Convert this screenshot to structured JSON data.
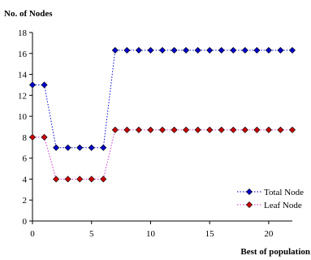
{
  "chart_data": {
    "type": "line",
    "ylabel": "No. of Nodes",
    "xlabel": "Best of population",
    "xlim": [
      0,
      22
    ],
    "ylim": [
      0,
      18
    ],
    "x_ticks": [
      0,
      5,
      10,
      15,
      20
    ],
    "y_ticks": [
      0,
      2,
      4,
      6,
      8,
      10,
      12,
      14,
      16,
      18
    ],
    "grid": false,
    "legend_position": "bottom-right",
    "x": [
      0,
      1,
      2,
      3,
      4,
      5,
      6,
      7,
      8,
      9,
      10,
      11,
      12,
      13,
      14,
      15,
      16,
      17,
      18,
      19,
      20,
      21,
      22
    ],
    "series": [
      {
        "name": "Total Node",
        "color": "#0000cc",
        "marker": "diamond",
        "line": "dotted",
        "values": [
          13,
          13,
          7,
          7,
          7,
          7,
          7,
          16.3,
          16.3,
          16.3,
          16.3,
          16.3,
          16.3,
          16.3,
          16.3,
          16.3,
          16.3,
          16.3,
          16.3,
          16.3,
          16.3,
          16.3,
          16.3
        ]
      },
      {
        "name": "Leaf Node",
        "color": "#cc0000",
        "line_color": "#cc33cc",
        "marker": "diamond",
        "line": "dotted",
        "values": [
          8,
          8,
          4,
          4,
          4,
          4,
          4,
          8.7,
          8.7,
          8.7,
          8.7,
          8.7,
          8.7,
          8.7,
          8.7,
          8.7,
          8.7,
          8.7,
          8.7,
          8.7,
          8.7,
          8.7,
          8.7
        ]
      }
    ]
  }
}
